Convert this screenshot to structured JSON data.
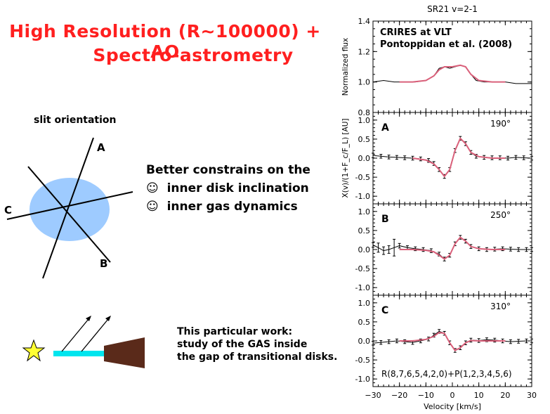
{
  "slide": {
    "title_line1": "High Resolution (R~100000) + AO",
    "title_line2": "Spectro-astrometry",
    "slit_orientation": "slit orientation",
    "slit_labels": {
      "a": "A",
      "b": "B",
      "c": "C"
    },
    "constraints_heading": "Better constrains on the",
    "constraints": [
      {
        "icon": "smiley-icon",
        "symbol": "☺",
        "text": "inner disk inclination"
      },
      {
        "icon": "smiley-icon",
        "symbol": "☺",
        "text": "inner gas dynamics"
      }
    ],
    "work_lines": [
      "This particular work:",
      "study of the GAS inside",
      "the gap of transitional disks."
    ],
    "colors": {
      "title": "#ff1f1f",
      "disk": "#9ecbff",
      "beam": "#00e5ee",
      "wedge": "#5a2a1a",
      "star": "#ffff33",
      "model": "#d9607a"
    }
  },
  "chart_data": {
    "type": "line",
    "title": "SR21 v=2-1",
    "xlabel": "Velocity [km/s]",
    "xlim": [
      -30,
      30
    ],
    "xticks": [
      -30,
      -20,
      -10,
      0,
      10,
      20,
      30
    ],
    "panels": [
      {
        "id": "flux",
        "ylabel": "Normalized flux",
        "ylim": [
          0.8,
          1.4
        ],
        "yticks": [
          "0.8",
          "1.0",
          "1.2",
          "1.4"
        ],
        "annotations": [
          "CRIRES at VLT",
          "Pontoppidan et al. (2008)"
        ],
        "series": [
          {
            "kind": "data",
            "x": [
              -30,
              -26,
              -22,
              -18,
              -14,
              -10,
              -7,
              -5,
              -3,
              -1,
              1,
              3,
              5,
              7,
              9,
              12,
              16,
              20,
              24,
              30
            ],
            "y": [
              1.0,
              1.01,
              1.0,
              1.0,
              1.0,
              1.01,
              1.04,
              1.09,
              1.1,
              1.09,
              1.1,
              1.11,
              1.1,
              1.05,
              1.01,
              1.0,
              1.0,
              1.0,
              0.99,
              0.99
            ]
          },
          {
            "kind": "model",
            "x": [
              -20,
              -15,
              -10,
              -7,
              -5,
              -3,
              0,
              3,
              5,
              7,
              10,
              15,
              20
            ],
            "y": [
              1.0,
              1.0,
              1.01,
              1.04,
              1.08,
              1.1,
              1.1,
              1.11,
              1.1,
              1.05,
              1.01,
              1.0,
              1.0
            ]
          }
        ]
      },
      {
        "id": "A",
        "label": "A",
        "angle": "190°",
        "ylabel": "X(v)/(1+F_c/F_L) [AU]",
        "ylim": [
          -1.2,
          1.2
        ],
        "yticks": [
          "-1.0",
          "-0.5",
          "0.0",
          "0.5",
          "1.0"
        ],
        "series": [
          {
            "kind": "data",
            "x": [
              -30,
              -27,
              -24,
              -21,
              -18,
              -15,
              -12,
              -9,
              -7,
              -5,
              -3,
              -1,
              1,
              3,
              5,
              7,
              9,
              12,
              15,
              18,
              21,
              24,
              27,
              30
            ],
            "y": [
              0.07,
              0.05,
              0.03,
              0.02,
              0.01,
              0.0,
              -0.02,
              -0.06,
              -0.14,
              -0.3,
              -0.48,
              -0.3,
              0.2,
              0.52,
              0.38,
              0.15,
              0.05,
              0.02,
              0.01,
              0.01,
              0.0,
              0.02,
              0.01,
              0.0
            ],
            "err": [
              0.06,
              0.05,
              0.05,
              0.05,
              0.05,
              0.05,
              0.05,
              0.05,
              0.05,
              0.05,
              0.05,
              0.05,
              0.05,
              0.05,
              0.05,
              0.05,
              0.05,
              0.05,
              0.05,
              0.05,
              0.05,
              0.05,
              0.05,
              0.05
            ]
          },
          {
            "kind": "model",
            "x": [
              -15,
              -10,
              -7,
              -5,
              -3,
              -1,
              1,
              3,
              5,
              7,
              10,
              15,
              20
            ],
            "y": [
              0.0,
              -0.05,
              -0.15,
              -0.3,
              -0.48,
              -0.3,
              0.2,
              0.52,
              0.38,
              0.15,
              0.04,
              0.0,
              0.0
            ]
          }
        ]
      },
      {
        "id": "B",
        "label": "B",
        "angle": "250°",
        "ylabel": "",
        "ylim": [
          -1.2,
          1.2
        ],
        "yticks": [
          "-1.0",
          "-0.5",
          "0.0",
          "0.5",
          "1.0"
        ],
        "series": [
          {
            "kind": "data",
            "x": [
              -30,
              -28,
              -26,
              -24,
              -22,
              -20,
              -17,
              -14,
              -11,
              -8,
              -5,
              -3,
              -1,
              1,
              3,
              5,
              7,
              10,
              13,
              16,
              19,
              22,
              25,
              28,
              30
            ],
            "y": [
              0.12,
              0.05,
              -0.03,
              0.0,
              0.05,
              0.1,
              0.05,
              0.02,
              0.0,
              -0.03,
              -0.12,
              -0.25,
              -0.15,
              0.15,
              0.32,
              0.22,
              0.08,
              0.02,
              0.0,
              0.01,
              0.02,
              0.01,
              0.0,
              0.0,
              0.0
            ],
            "err": [
              0.06,
              0.12,
              0.1,
              0.1,
              0.22,
              0.06,
              0.05,
              0.05,
              0.05,
              0.05,
              0.05,
              0.05,
              0.05,
              0.05,
              0.05,
              0.05,
              0.05,
              0.05,
              0.05,
              0.05,
              0.05,
              0.05,
              0.05,
              0.05,
              0.05
            ]
          },
          {
            "kind": "model",
            "x": [
              -20,
              -15,
              -10,
              -7,
              -5,
              -3,
              -1,
              1,
              3,
              5,
              7,
              10,
              15,
              20
            ],
            "y": [
              0.0,
              0.0,
              -0.02,
              -0.06,
              -0.15,
              -0.25,
              -0.15,
              0.15,
              0.32,
              0.22,
              0.08,
              0.02,
              0.0,
              0.0
            ]
          }
        ]
      },
      {
        "id": "C",
        "label": "C",
        "angle": "310°",
        "ylabel": "",
        "ylim": [
          -1.2,
          1.2
        ],
        "yticks": [
          "-1.0",
          "-0.5",
          "0.0",
          "0.5",
          "1.0"
        ],
        "annotation": "R(8,7,6,5,4,2,0)+P(1,2,3,4,5,6)",
        "series": [
          {
            "kind": "data",
            "x": [
              -30,
              -27,
              -24,
              -21,
              -18,
              -15,
              -12,
              -9,
              -7,
              -5,
              -3,
              -1,
              1,
              3,
              5,
              7,
              10,
              13,
              16,
              19,
              22,
              25,
              28,
              30
            ],
            "y": [
              -0.06,
              -0.04,
              -0.02,
              0.0,
              -0.02,
              -0.04,
              0.0,
              0.05,
              0.15,
              0.25,
              0.2,
              -0.05,
              -0.25,
              -0.18,
              -0.05,
              0.02,
              0.01,
              0.03,
              0.02,
              0.0,
              -0.02,
              -0.01,
              0.0,
              0.0
            ],
            "err": [
              0.05,
              0.05,
              0.05,
              0.05,
              0.05,
              0.05,
              0.05,
              0.05,
              0.05,
              0.05,
              0.05,
              0.05,
              0.05,
              0.05,
              0.05,
              0.05,
              0.05,
              0.05,
              0.05,
              0.05,
              0.05,
              0.05,
              0.05,
              0.05
            ]
          },
          {
            "kind": "model",
            "x": [
              -20,
              -15,
              -10,
              -7,
              -5,
              -3,
              -1,
              1,
              3,
              5,
              7,
              10,
              15,
              20
            ],
            "y": [
              0.0,
              0.0,
              0.04,
              0.12,
              0.22,
              0.2,
              -0.05,
              -0.25,
              -0.18,
              -0.05,
              0.01,
              0.0,
              0.0,
              0.0
            ]
          }
        ]
      }
    ]
  }
}
